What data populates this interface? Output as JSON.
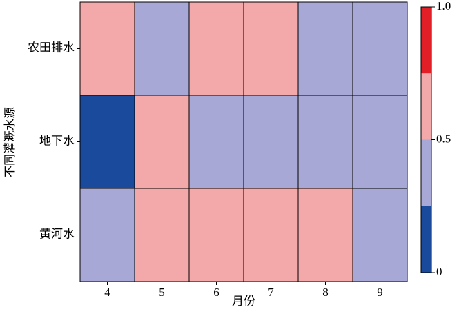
{
  "chart_data": {
    "type": "heatmap",
    "xlabel": "月份",
    "ylabel": "不同灌溉水源",
    "x": [
      4,
      5,
      6,
      7,
      8,
      9
    ],
    "y": [
      "农田排水",
      "地下水",
      "黄河水"
    ],
    "z": [
      [
        0.6,
        0.4,
        0.6,
        0.6,
        0.4,
        0.4
      ],
      [
        0.1,
        0.6,
        0.4,
        0.4,
        0.4,
        0.4
      ],
      [
        0.4,
        0.6,
        0.6,
        0.6,
        0.6,
        0.4
      ]
    ],
    "colorbar": {
      "bounds": [
        0,
        0.25,
        0.5,
        0.75,
        1
      ],
      "colors": [
        "#1a4a9c",
        "#a8a8d6",
        "#f3a9aa",
        "#e21f26"
      ],
      "ylim": [
        0,
        1
      ],
      "yticks": [
        0,
        0.5,
        {
          "value": 1,
          "label": "1.0"
        }
      ]
    }
  }
}
